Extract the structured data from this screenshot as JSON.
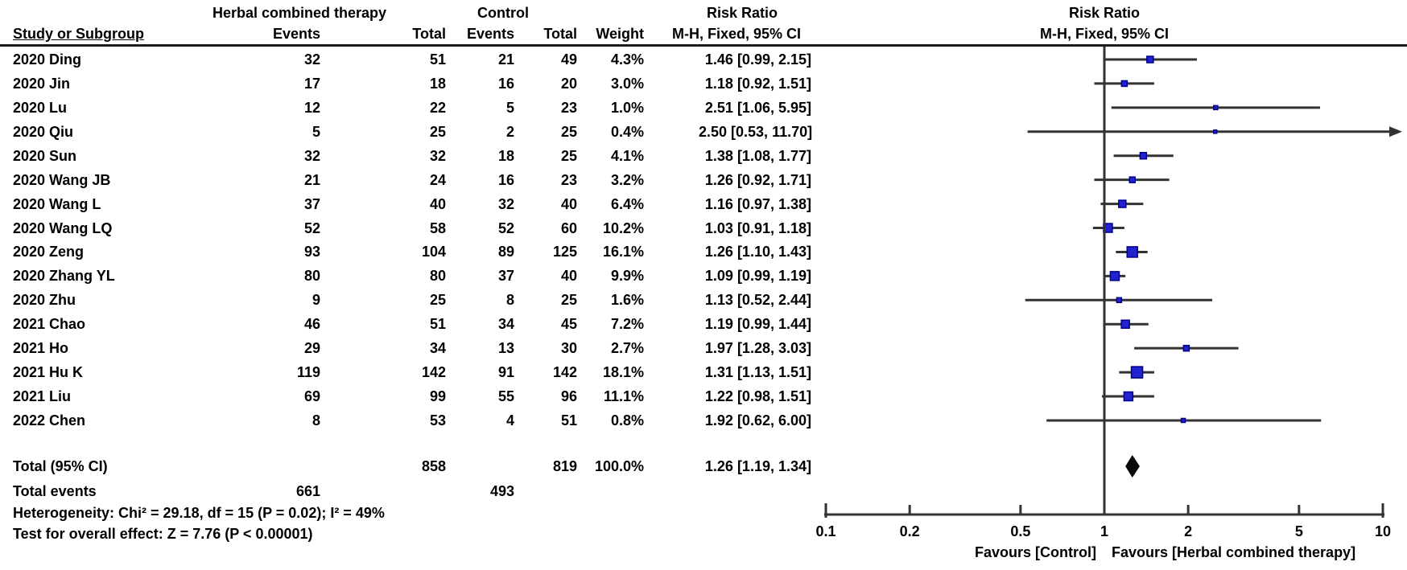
{
  "header": {
    "group1": "Herbal combined therapy",
    "group2": "Control",
    "col_study": "Study or Subgroup",
    "col_events": "Events",
    "col_total": "Total",
    "col_weight": "Weight",
    "risk_ratio": "Risk Ratio",
    "method": "M-H, Fixed, 95% CI"
  },
  "chart_data": {
    "type": "forest",
    "effect_measure": "Risk Ratio",
    "method": "M-H, Fixed, 95% CI",
    "scale": "log",
    "axis": {
      "min": 0.1,
      "max": 10,
      "ticks": [
        "0.1",
        "0.2",
        "0.5",
        "1",
        "2",
        "5",
        "10"
      ],
      "tick_values": [
        0.1,
        0.2,
        0.5,
        1,
        2,
        5,
        10
      ]
    },
    "studies": [
      {
        "study": "2020 Ding",
        "events1": "32",
        "total1": "51",
        "events2": "21",
        "total2": "49",
        "weight": "4.3%",
        "w": 4.3,
        "rr": 1.46,
        "lo": 0.99,
        "hi": 2.15,
        "ci": "1.46 [0.99, 2.15]"
      },
      {
        "study": "2020 Jin",
        "events1": "17",
        "total1": "18",
        "events2": "16",
        "total2": "20",
        "weight": "3.0%",
        "w": 3.0,
        "rr": 1.18,
        "lo": 0.92,
        "hi": 1.51,
        "ci": "1.18 [0.92, 1.51]"
      },
      {
        "study": "2020 Lu",
        "events1": "12",
        "total1": "22",
        "events2": "5",
        "total2": "23",
        "weight": "1.0%",
        "w": 1.0,
        "rr": 2.51,
        "lo": 1.06,
        "hi": 5.95,
        "ci": "2.51 [1.06, 5.95]"
      },
      {
        "study": "2020 Qiu",
        "events1": "5",
        "total1": "25",
        "events2": "2",
        "total2": "25",
        "weight": "0.4%",
        "w": 0.4,
        "rr": 2.5,
        "lo": 0.53,
        "hi": 11.7,
        "ci": "2.50 [0.53, 11.70]"
      },
      {
        "study": "2020 Sun",
        "events1": "32",
        "total1": "32",
        "events2": "18",
        "total2": "25",
        "weight": "4.1%",
        "w": 4.1,
        "rr": 1.38,
        "lo": 1.08,
        "hi": 1.77,
        "ci": "1.38 [1.08, 1.77]"
      },
      {
        "study": "2020 Wang JB",
        "events1": "21",
        "total1": "24",
        "events2": "16",
        "total2": "23",
        "weight": "3.2%",
        "w": 3.2,
        "rr": 1.26,
        "lo": 0.92,
        "hi": 1.71,
        "ci": "1.26 [0.92, 1.71]"
      },
      {
        "study": "2020 Wang L",
        "events1": "37",
        "total1": "40",
        "events2": "32",
        "total2": "40",
        "weight": "6.4%",
        "w": 6.4,
        "rr": 1.16,
        "lo": 0.97,
        "hi": 1.38,
        "ci": "1.16 [0.97, 1.38]"
      },
      {
        "study": "2020 Wang LQ",
        "events1": "52",
        "total1": "58",
        "events2": "52",
        "total2": "60",
        "weight": "10.2%",
        "w": 10.2,
        "rr": 1.03,
        "lo": 0.91,
        "hi": 1.18,
        "ci": "1.03 [0.91, 1.18]"
      },
      {
        "study": "2020 Zeng",
        "events1": "93",
        "total1": "104",
        "events2": "89",
        "total2": "125",
        "weight": "16.1%",
        "w": 16.1,
        "rr": 1.26,
        "lo": 1.1,
        "hi": 1.43,
        "ci": "1.26 [1.10, 1.43]"
      },
      {
        "study": "2020 Zhang YL",
        "events1": "80",
        "total1": "80",
        "events2": "37",
        "total2": "40",
        "weight": "9.9%",
        "w": 9.9,
        "rr": 1.09,
        "lo": 0.99,
        "hi": 1.19,
        "ci": "1.09 [0.99, 1.19]"
      },
      {
        "study": "2020 Zhu",
        "events1": "9",
        "total1": "25",
        "events2": "8",
        "total2": "25",
        "weight": "1.6%",
        "w": 1.6,
        "rr": 1.13,
        "lo": 0.52,
        "hi": 2.44,
        "ci": "1.13 [0.52, 2.44]"
      },
      {
        "study": "2021 Chao",
        "events1": "46",
        "total1": "51",
        "events2": "34",
        "total2": "45",
        "weight": "7.2%",
        "w": 7.2,
        "rr": 1.19,
        "lo": 0.99,
        "hi": 1.44,
        "ci": "1.19 [0.99, 1.44]"
      },
      {
        "study": "2021 Ho",
        "events1": "29",
        "total1": "34",
        "events2": "13",
        "total2": "30",
        "weight": "2.7%",
        "w": 2.7,
        "rr": 1.97,
        "lo": 1.28,
        "hi": 3.03,
        "ci": "1.97 [1.28, 3.03]"
      },
      {
        "study": "2021 Hu K",
        "events1": "119",
        "total1": "142",
        "events2": "91",
        "total2": "142",
        "weight": "18.1%",
        "w": 18.1,
        "rr": 1.31,
        "lo": 1.13,
        "hi": 1.51,
        "ci": "1.31 [1.13, 1.51]"
      },
      {
        "study": "2021 Liu",
        "events1": "69",
        "total1": "99",
        "events2": "55",
        "total2": "96",
        "weight": "11.1%",
        "w": 11.1,
        "rr": 1.22,
        "lo": 0.98,
        "hi": 1.51,
        "ci": "1.22 [0.98, 1.51]"
      },
      {
        "study": "2022 Chen",
        "events1": "8",
        "total1": "53",
        "events2": "4",
        "total2": "51",
        "weight": "0.8%",
        "w": 0.8,
        "rr": 1.92,
        "lo": 0.62,
        "hi": 6.0,
        "ci": "1.92 [0.62, 6.00]"
      }
    ],
    "total": {
      "label": "Total (95% CI)",
      "total1": "858",
      "total2": "819",
      "weight": "100.0%",
      "rr": 1.26,
      "lo": 1.19,
      "hi": 1.34,
      "ci": "1.26 [1.19, 1.34]"
    },
    "total_events": {
      "label": "Total events",
      "events1": "661",
      "events2": "493"
    },
    "heterogeneity": "Heterogeneity: Chi² = 29.18, df = 15 (P = 0.02); I² = 49%",
    "overall_effect": "Test for overall effect: Z = 7.76 (P < 0.00001)",
    "favours_left": "Favours [Control]",
    "favours_right": "Favours [Herbal combined therapy]"
  },
  "colors": {
    "square": "#2222CF",
    "square_border": "#00008B",
    "line": "#333333",
    "diamond": "#0a0a0a",
    "text": "#000000"
  }
}
